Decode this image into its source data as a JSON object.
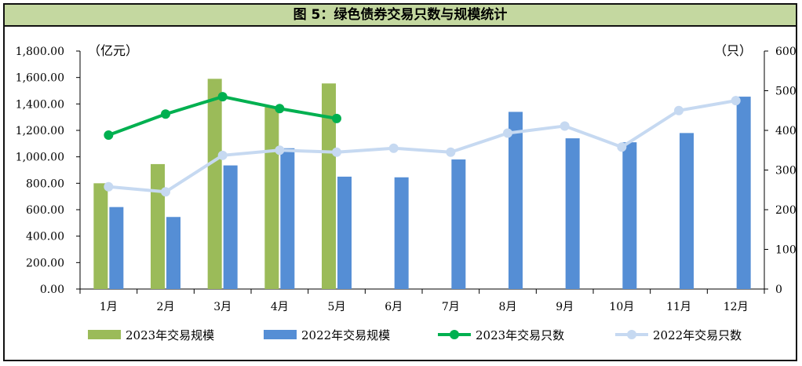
{
  "chart_data": {
    "type": "bar+line",
    "title": "图 5：绿色债券交易只数与规模统计",
    "categories": [
      "1月",
      "2月",
      "3月",
      "4月",
      "5月",
      "6月",
      "7月",
      "8月",
      "9月",
      "10月",
      "11月",
      "12月"
    ],
    "left_axis": {
      "unit": "（亿元）",
      "ylim": [
        0,
        1800
      ],
      "ticks": [
        "0.00",
        "200.00",
        "400.00",
        "600.00",
        "800.00",
        "1,000.00",
        "1,200.00",
        "1,400.00",
        "1,600.00",
        "1,800.00"
      ]
    },
    "right_axis": {
      "unit": "（只）",
      "ylim": [
        0,
        600
      ],
      "ticks": [
        "0",
        "100",
        "200",
        "300",
        "400",
        "500",
        "600"
      ]
    },
    "series": [
      {
        "name": "2023年交易规模",
        "type": "bar",
        "axis": "left",
        "color": "#9bbb59",
        "values": [
          800,
          945,
          1590,
          1375,
          1555,
          null,
          null,
          null,
          null,
          null,
          null,
          null
        ]
      },
      {
        "name": "2022年交易规模",
        "type": "bar",
        "axis": "left",
        "color": "#558ed5",
        "values": [
          620,
          545,
          935,
          1065,
          850,
          845,
          980,
          1340,
          1140,
          1110,
          1180,
          1455
        ]
      },
      {
        "name": "2023年交易只数",
        "type": "line",
        "axis": "right",
        "color": "#00b050",
        "values": [
          388,
          441,
          485,
          455,
          430,
          null,
          null,
          null,
          null,
          null,
          null,
          null
        ]
      },
      {
        "name": "2022年交易只数",
        "type": "line",
        "axis": "right",
        "color": "#c6d9f1",
        "values": [
          258,
          245,
          337,
          350,
          345,
          355,
          345,
          393,
          411,
          358,
          450,
          475
        ]
      }
    ],
    "legend_position": "bottom",
    "grid": false
  }
}
